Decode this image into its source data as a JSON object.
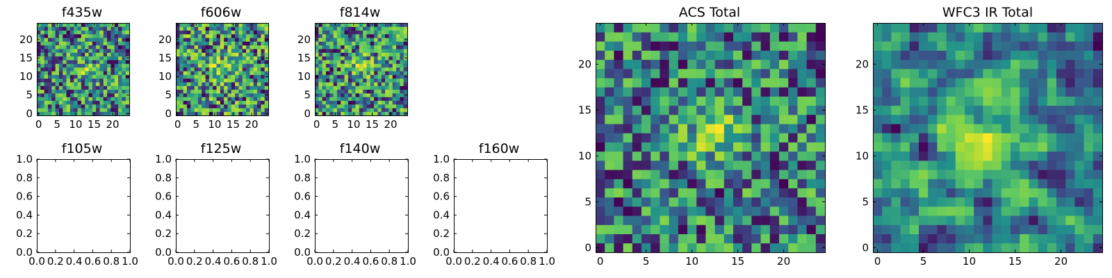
{
  "figure": {
    "palette": [
      "#440154",
      "#3b528b",
      "#21918c",
      "#5ec962",
      "#a0da39",
      "#fde725"
    ]
  },
  "chart_data": [
    {
      "type": "heatmap",
      "title": "f435w",
      "grid_size": 25,
      "value_range": [
        0,
        1
      ],
      "seed": 11,
      "center": [
        12.5,
        12.5
      ],
      "blob_strength": 0.25,
      "smooth": 0,
      "xticks": [
        "0",
        "5",
        "10",
        "15",
        "20"
      ],
      "yticks": [
        "0",
        "5",
        "10",
        "15",
        "20"
      ]
    },
    {
      "type": "heatmap",
      "title": "f606w",
      "grid_size": 25,
      "value_range": [
        0,
        1
      ],
      "seed": 23,
      "center": [
        12.5,
        12.5
      ],
      "blob_strength": 0.3,
      "smooth": 0,
      "xticks": [
        "0",
        "5",
        "10",
        "15",
        "20"
      ],
      "yticks": [
        "0",
        "5",
        "10",
        "15",
        "20"
      ]
    },
    {
      "type": "heatmap",
      "title": "f814w",
      "grid_size": 25,
      "value_range": [
        0,
        1
      ],
      "seed": 37,
      "center": [
        12.5,
        12.5
      ],
      "blob_strength": 0.3,
      "smooth": 0,
      "xticks": [
        "0",
        "5",
        "10",
        "15",
        "20"
      ],
      "yticks": [
        "0",
        "5",
        "10",
        "15",
        "20"
      ]
    },
    {
      "type": "empty",
      "title": "f105w",
      "xlim": [
        0,
        1
      ],
      "ylim": [
        0,
        1
      ],
      "xticks": [
        "0.0",
        "0.2",
        "0.4",
        "0.6",
        "0.8",
        "1.0"
      ],
      "yticks": [
        "0.0",
        "0.2",
        "0.4",
        "0.6",
        "0.8",
        "1.0"
      ]
    },
    {
      "type": "empty",
      "title": "f125w",
      "xlim": [
        0,
        1
      ],
      "ylim": [
        0,
        1
      ],
      "xticks": [
        "0.0",
        "0.2",
        "0.4",
        "0.6",
        "0.8",
        "1.0"
      ],
      "yticks": [
        "0.0",
        "0.2",
        "0.4",
        "0.6",
        "0.8",
        "1.0"
      ]
    },
    {
      "type": "empty",
      "title": "f140w",
      "xlim": [
        0,
        1
      ],
      "ylim": [
        0,
        1
      ],
      "xticks": [
        "0.0",
        "0.2",
        "0.4",
        "0.6",
        "0.8",
        "1.0"
      ],
      "yticks": [
        "0.0",
        "0.2",
        "0.4",
        "0.6",
        "0.8",
        "1.0"
      ]
    },
    {
      "type": "empty",
      "title": "f160w",
      "xlim": [
        0,
        1
      ],
      "ylim": [
        0,
        1
      ],
      "xticks": [
        "0.0",
        "0.2",
        "0.4",
        "0.6",
        "0.8",
        "1.0"
      ],
      "yticks": [
        "0.0",
        "0.2",
        "0.4",
        "0.6",
        "0.8",
        "1.0"
      ]
    },
    {
      "type": "heatmap",
      "title": "ACS Total",
      "grid_size": 25,
      "value_range": [
        0,
        1
      ],
      "seed": 53,
      "center": [
        12.5,
        12.5
      ],
      "blob_strength": 0.45,
      "smooth": 0,
      "xticks": [
        "0",
        "5",
        "10",
        "15",
        "20"
      ],
      "yticks": [
        "0",
        "5",
        "10",
        "15",
        "20"
      ]
    },
    {
      "type": "heatmap",
      "title": "WFC3 IR Total",
      "grid_size": 25,
      "value_range": [
        0,
        1
      ],
      "seed": 71,
      "center": [
        12,
        11.5
      ],
      "blob_strength": 0.35,
      "smooth": 1,
      "xticks": [
        "0",
        "5",
        "10",
        "15",
        "20"
      ],
      "yticks": [
        "0",
        "5",
        "10",
        "15",
        "20"
      ]
    }
  ]
}
